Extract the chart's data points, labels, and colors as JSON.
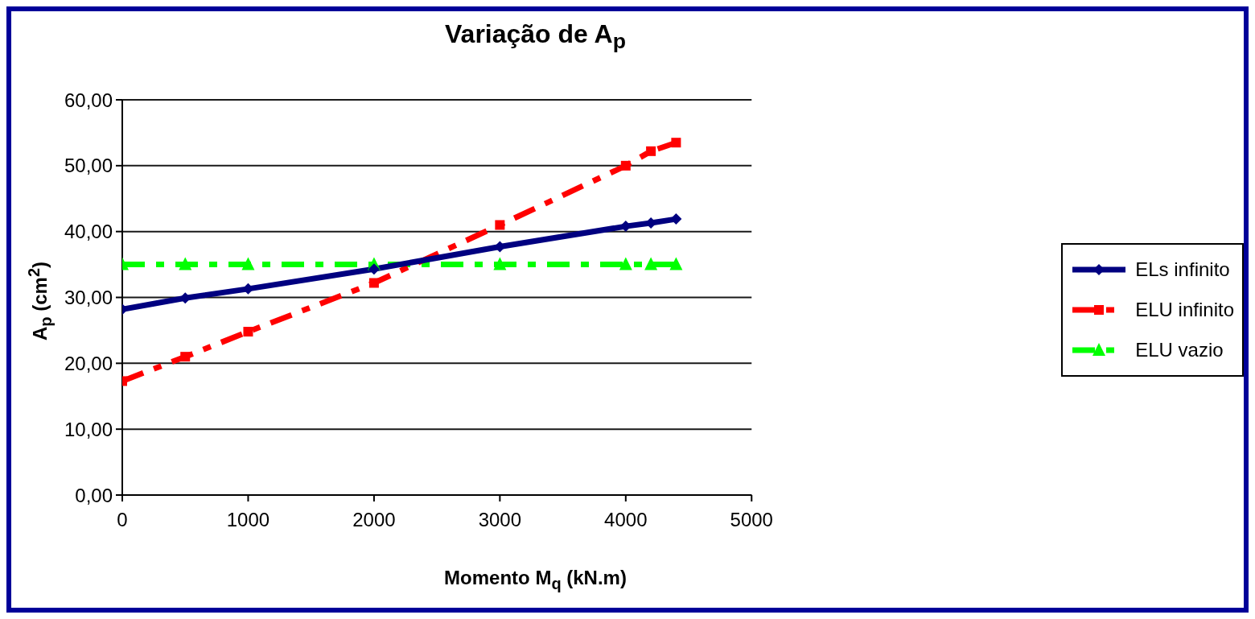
{
  "chart_data": {
    "type": "line",
    "title": "Variação de A$_{p}$",
    "xlabel": "Momento M$_{q}$ (kN.m)",
    "ylabel": "A$_{p}$ (cm$^{2}$)",
    "x": [
      0,
      500,
      1000,
      2000,
      3000,
      4000,
      4200,
      4400
    ],
    "series": [
      {
        "name": "ELs infinito",
        "color": "#000080",
        "marker": "diamond",
        "line_style": "solid",
        "values": [
          28.2,
          29.9,
          31.3,
          34.3,
          37.7,
          40.8,
          41.3,
          41.9
        ]
      },
      {
        "name": "ELU infinito",
        "color": "#ff0000",
        "marker": "square",
        "line_style": "dashed",
        "values": [
          17.3,
          21.0,
          24.8,
          32.2,
          41.0,
          50.0,
          52.2,
          53.5
        ]
      },
      {
        "name": "ELU vazio",
        "color": "#00ff00",
        "marker": "triangle",
        "line_style": "dashed",
        "values": [
          35,
          35,
          35,
          35,
          35,
          35,
          35,
          35
        ]
      }
    ],
    "xlim": [
      0,
      5000
    ],
    "xticks": [
      0,
      1000,
      2000,
      3000,
      4000,
      5000
    ],
    "ylim": [
      0,
      60
    ],
    "yticks": [
      {
        "value": 0,
        "label": "0,00"
      },
      {
        "value": 10,
        "label": "10,00"
      },
      {
        "value": 20,
        "label": "20,00"
      },
      {
        "value": 30,
        "label": "30,00"
      },
      {
        "value": 40,
        "label": "40,00"
      },
      {
        "value": 50,
        "label": "50,00"
      },
      {
        "value": 60,
        "label": "60,00"
      }
    ],
    "grid": "y",
    "legend": "right"
  }
}
